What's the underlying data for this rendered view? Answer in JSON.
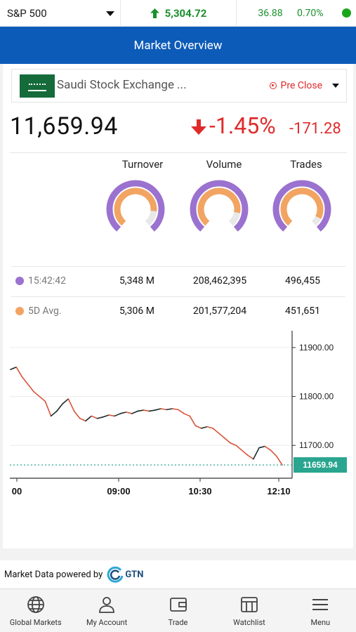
{
  "ticker": {
    "selected_index": "S&P 500",
    "price": "5,304.72",
    "change": "36.88",
    "change_pct": "0.70%",
    "status_color": "#1aa61a"
  },
  "header": {
    "title": "Market Overview"
  },
  "exchange": {
    "name": "Saudi Stock Exchange ...",
    "status": "Pre Close"
  },
  "index": {
    "value": "11,659.94",
    "change_pct": "-1.45%",
    "change_abs": "-171.28"
  },
  "stats": {
    "columns": [
      "Turnover",
      "Volume",
      "Trades"
    ],
    "gauges": [
      {
        "name": "Turnover",
        "level": 1.01
      },
      {
        "name": "Volume",
        "level": 1.03
      },
      {
        "name": "Trades",
        "level": 1.1
      }
    ],
    "rows": [
      {
        "label": "15:42:42",
        "color": "#9b72cf",
        "values": [
          "5,348 M",
          "208,462,395",
          "496,455"
        ]
      },
      {
        "label": "5D Avg.",
        "color": "#f2a462",
        "values": [
          "5,306 M",
          "201,577,204",
          "451,651"
        ]
      }
    ]
  },
  "chart_data": {
    "type": "line",
    "y_ticks": [
      "11900.00",
      "11800.00",
      "11700.00"
    ],
    "x_ticks": [
      "00",
      "09:00",
      "10:30",
      "12:10"
    ],
    "last_value_label": "11659.94",
    "ylim": [
      11640,
      11920
    ],
    "series": [
      {
        "values": [
          11855,
          11860,
          11840,
          11825,
          11810,
          11800,
          11790,
          11760,
          11770,
          11785,
          11795,
          11770,
          11755,
          11750,
          11760,
          11755,
          11758,
          11762,
          11760,
          11765,
          11768,
          11765,
          11770,
          11772,
          11770,
          11772,
          11775,
          11773,
          11775,
          11773,
          11765,
          11760,
          11740,
          11735,
          11738,
          11735,
          11725,
          11715,
          11705,
          11700,
          11690,
          11680,
          11672,
          11695,
          11698,
          11690,
          11678,
          11660
        ]
      }
    ]
  },
  "footer": {
    "powered_by": "Market Data powered by",
    "brand": "GTN"
  },
  "tabs": [
    "Global Markets",
    "My Account",
    "Trade",
    "Watchlist",
    "Menu"
  ]
}
